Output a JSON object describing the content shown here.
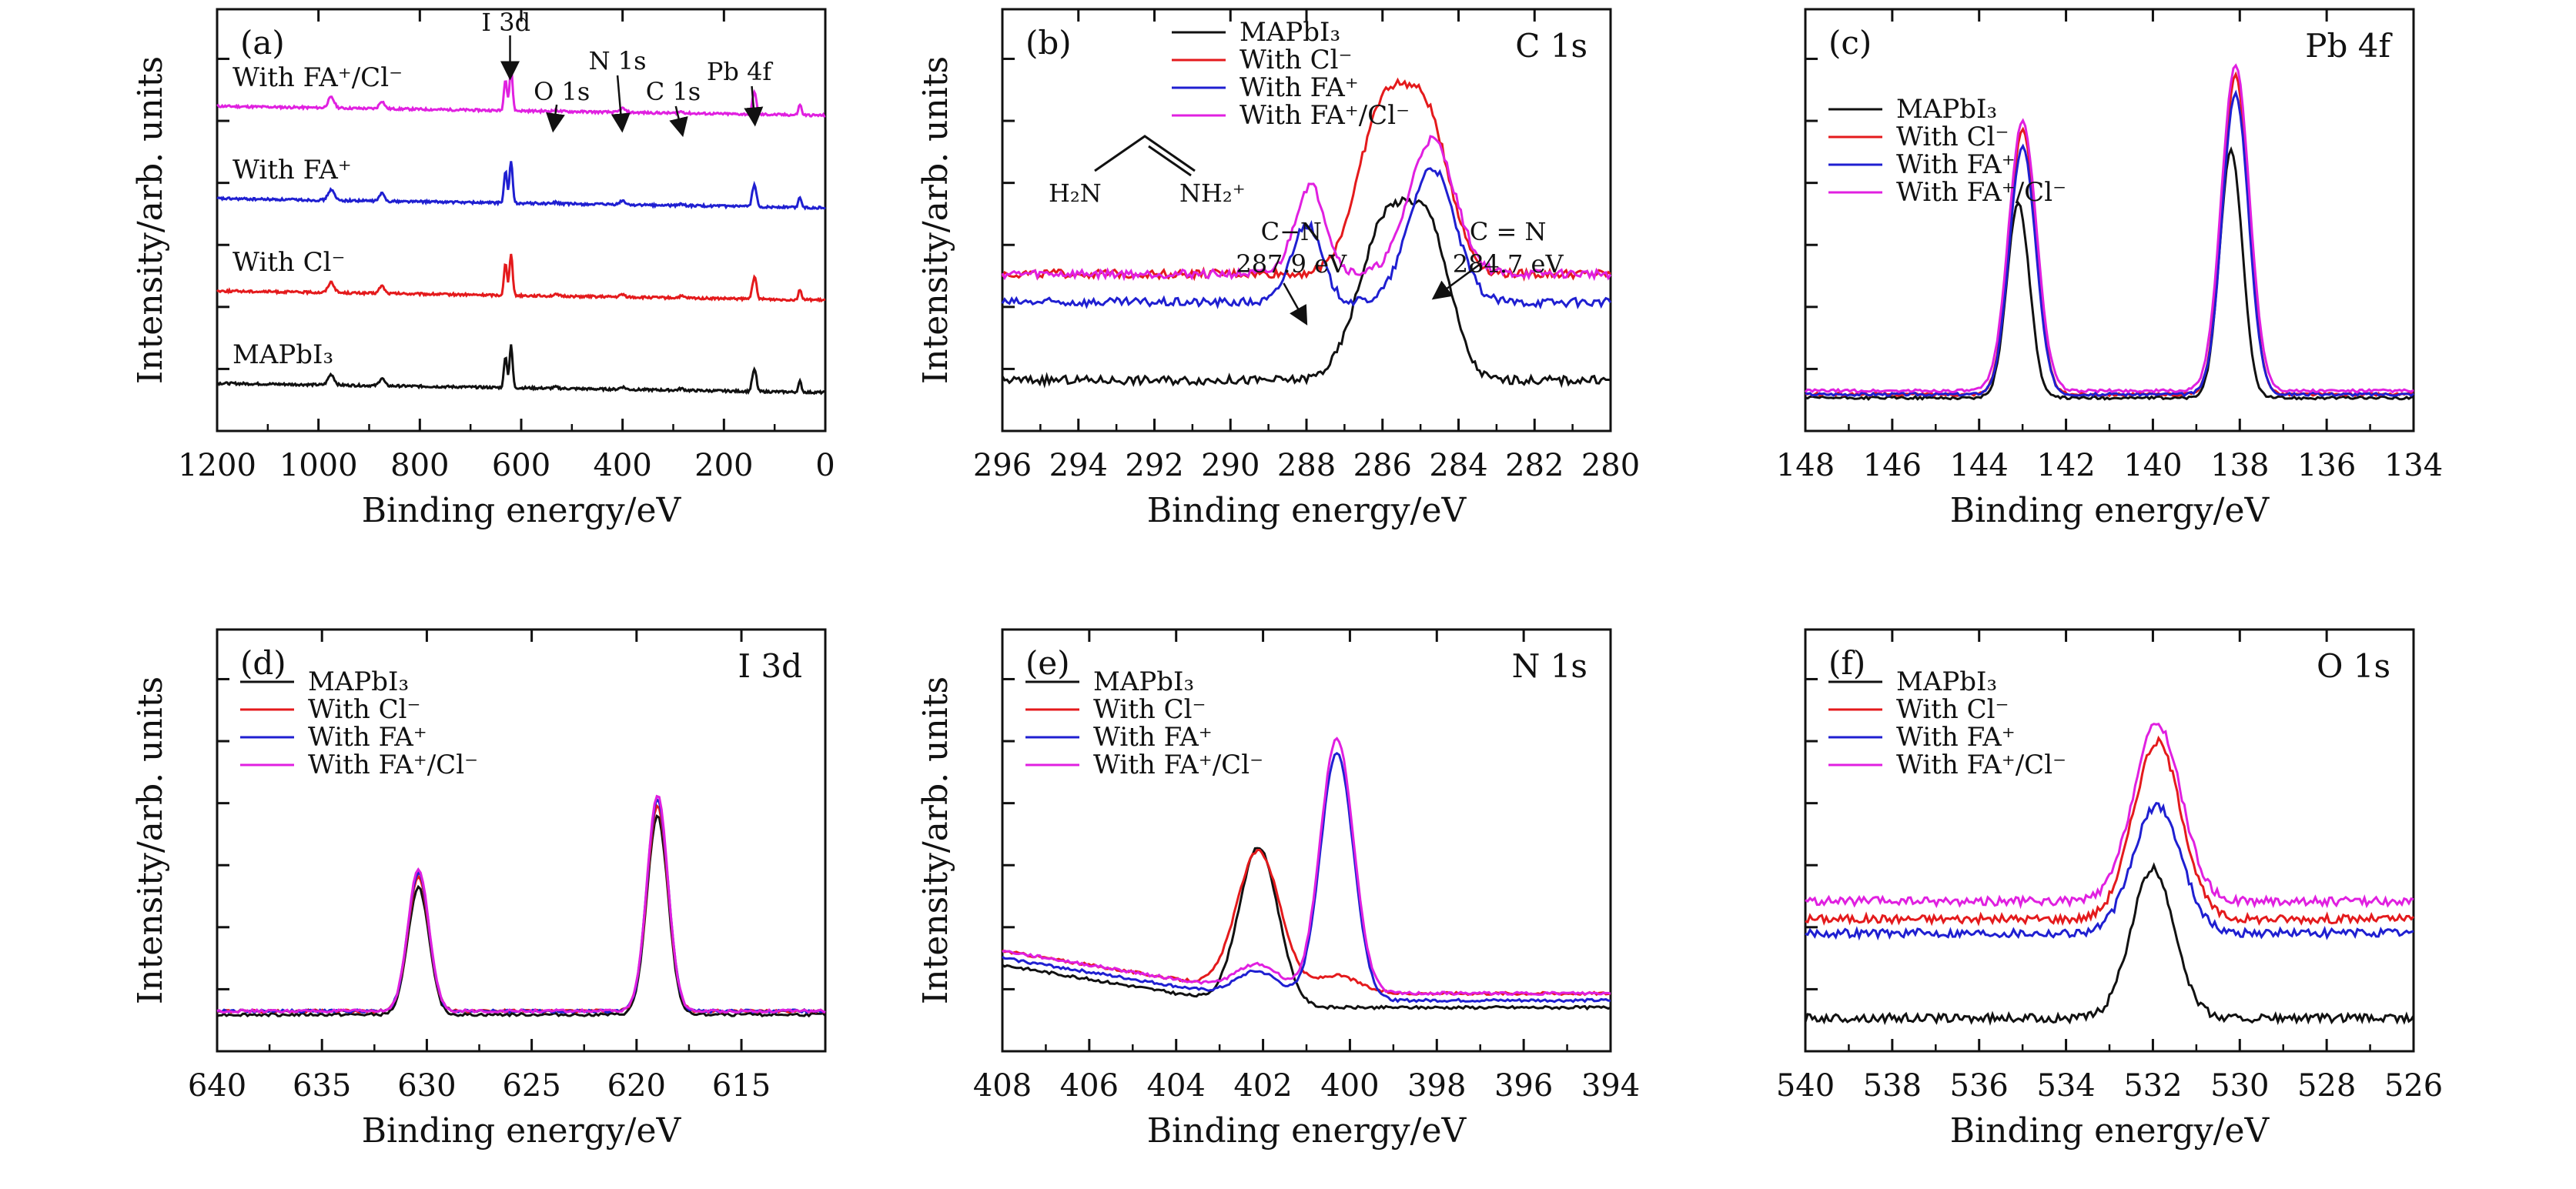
{
  "colors": {
    "black": "#111111",
    "red": "#e41a1c",
    "blue": "#1f1fd1",
    "magenta": "#e020e0"
  },
  "chart_data": [
    {
      "panel": "(a)",
      "type": "line",
      "xlabel": "Binding energy/eV",
      "ylabel": "Intensity/arb. units",
      "xlim": [
        1200,
        0
      ],
      "x_ticks": [
        "1200",
        "1000",
        "800",
        "600",
        "400",
        "200",
        "0"
      ],
      "curve_labels": [
        "With FA⁺/Cl⁻",
        "With FA⁺",
        "With Cl⁻",
        "MAPbI₃"
      ],
      "peak_labels": [
        "I 3d",
        "O 1s",
        "N 1s",
        "C 1s",
        "Pb 4f"
      ],
      "series": [
        {
          "color": "#e020e0",
          "offset": 3
        },
        {
          "color": "#1f1fd1",
          "offset": 2
        },
        {
          "color": "#e41a1c",
          "offset": 1
        },
        {
          "color": "#111111",
          "offset": 0
        }
      ]
    },
    {
      "panel": "(b)",
      "title": "C 1s",
      "type": "line",
      "xlabel": "Binding energy/eV",
      "ylabel": "Intensity/arb. units",
      "xlim": [
        296,
        280
      ],
      "x_ticks": [
        "296",
        "294",
        "292",
        "290",
        "288",
        "286",
        "284",
        "282",
        "280"
      ],
      "legend": [
        "MAPbI₃",
        "With Cl⁻",
        "With FA⁺",
        "With FA⁺/Cl⁻"
      ],
      "annotations": {
        "structure_left": "H₂N",
        "structure_right": "NH₂⁺",
        "cn_label": "C−N",
        "cn_value": "287.9 eV",
        "c2n_label": "C = N",
        "c2n_value": "284.7 eV"
      },
      "series": [
        {
          "name": "MAPbI₃",
          "baseline": 0.1,
          "peaks": [
            [
              285.9,
              0.45,
              0.7
            ],
            [
              284.7,
              0.35,
              0.55
            ]
          ]
        },
        {
          "name": "With Cl⁻",
          "baseline": 0.4,
          "peaks": [
            [
              286.0,
              0.45,
              0.65
            ],
            [
              284.8,
              0.4,
              0.6
            ]
          ]
        },
        {
          "name": "With FA⁺",
          "baseline": 0.32,
          "peaks": [
            [
              288.0,
              0.22,
              0.4
            ],
            [
              284.7,
              0.38,
              0.6
            ]
          ]
        },
        {
          "name": "With FA⁺/Cl⁻",
          "baseline": 0.4,
          "peaks": [
            [
              287.9,
              0.25,
              0.4
            ],
            [
              284.7,
              0.38,
              0.6
            ]
          ]
        }
      ]
    },
    {
      "panel": "(c)",
      "title": "Pb 4f",
      "type": "line",
      "xlabel": "Binding energy/eV",
      "ylabel": "",
      "xlim": [
        148,
        134
      ],
      "x_ticks": [
        "148",
        "146",
        "144",
        "142",
        "140",
        "138",
        "136",
        "134"
      ],
      "legend": [
        "MAPbI₃",
        "With Cl⁻",
        "With FA⁺",
        "With FA⁺/Cl⁻"
      ],
      "series": [
        {
          "name": "MAPbI₃",
          "baseline": 0.05,
          "peaks": [
            [
              143.1,
              0.55,
              0.26
            ],
            [
              138.2,
              0.7,
              0.26
            ]
          ]
        },
        {
          "name": "With Cl⁻",
          "baseline": 0.06,
          "peaks": [
            [
              143.0,
              0.75,
              0.3
            ],
            [
              138.1,
              0.9,
              0.3
            ]
          ]
        },
        {
          "name": "With FA⁺",
          "baseline": 0.06,
          "peaks": [
            [
              143.0,
              0.7,
              0.3
            ],
            [
              138.1,
              0.85,
              0.3
            ]
          ]
        },
        {
          "name": "With FA⁺/Cl⁻",
          "baseline": 0.07,
          "peaks": [
            [
              143.0,
              0.76,
              0.32
            ],
            [
              138.1,
              0.92,
              0.32
            ]
          ]
        }
      ]
    },
    {
      "panel": "(d)",
      "title": "I 3d",
      "type": "line",
      "xlabel": "Binding energy/eV",
      "ylabel": "Intensity/arb. units",
      "xlim": [
        640,
        611
      ],
      "x_ticks": [
        "640",
        "635",
        "630",
        "625",
        "620",
        "615"
      ],
      "legend": [
        "MAPbI₃",
        "With Cl⁻",
        "With FA⁺",
        "With FA⁺/Cl⁻"
      ],
      "series": [
        {
          "name": "MAPbI₃",
          "baseline": 0.06,
          "peaks": [
            [
              630.4,
              0.36,
              0.5
            ],
            [
              619.0,
              0.56,
              0.5
            ]
          ]
        },
        {
          "name": "With Cl⁻",
          "baseline": 0.07,
          "peaks": [
            [
              630.4,
              0.38,
              0.5
            ],
            [
              619.0,
              0.58,
              0.5
            ]
          ]
        },
        {
          "name": "With FA⁺",
          "baseline": 0.07,
          "peaks": [
            [
              630.4,
              0.39,
              0.5
            ],
            [
              619.0,
              0.6,
              0.5
            ]
          ]
        },
        {
          "name": "With FA⁺/Cl⁻",
          "baseline": 0.07,
          "peaks": [
            [
              630.4,
              0.4,
              0.5
            ],
            [
              619.0,
              0.61,
              0.5
            ]
          ]
        }
      ]
    },
    {
      "panel": "(e)",
      "title": "N 1s",
      "type": "line",
      "xlabel": "Binding energy/eV",
      "ylabel": "Intensity/arb. units",
      "xlim": [
        408,
        394
      ],
      "x_ticks": [
        "408",
        "406",
        "404",
        "402",
        "400",
        "398",
        "396",
        "394"
      ],
      "legend": [
        "MAPbI₃",
        "With Cl⁻",
        "With FA⁺",
        "With FA⁺/Cl⁻"
      ],
      "series": [
        {
          "name": "MAPbI₃",
          "baseline": 0.08,
          "peaks": [
            [
              402.1,
              0.45,
              0.45
            ]
          ]
        },
        {
          "name": "With Cl⁻",
          "baseline": 0.12,
          "peaks": [
            [
              402.1,
              0.4,
              0.5
            ],
            [
              400.3,
              0.05,
              0.5
            ]
          ]
        },
        {
          "name": "With FA⁺",
          "baseline": 0.1,
          "peaks": [
            [
              402.1,
              0.08,
              0.5
            ],
            [
              400.3,
              0.7,
              0.38
            ]
          ]
        },
        {
          "name": "With FA⁺/Cl⁻",
          "baseline": 0.12,
          "peaks": [
            [
              402.1,
              0.08,
              0.5
            ],
            [
              400.3,
              0.72,
              0.38
            ]
          ]
        }
      ]
    },
    {
      "panel": "(f)",
      "title": "O 1s",
      "type": "line",
      "xlabel": "Binding energy/eV",
      "ylabel": "",
      "xlim": [
        540,
        526
      ],
      "x_ticks": [
        "540",
        "538",
        "536",
        "534",
        "532",
        "530",
        "528",
        "526"
      ],
      "legend": [
        "MAPbI₃",
        "With Cl⁻",
        "With FA⁺",
        "With FA⁺/Cl⁻"
      ],
      "series": [
        {
          "name": "MAPbI₃",
          "baseline": 0.05,
          "peaks": [
            [
              532.0,
              0.42,
              0.5
            ]
          ]
        },
        {
          "name": "With Cl⁻",
          "baseline": 0.33,
          "peaks": [
            [
              531.9,
              0.5,
              0.55
            ]
          ]
        },
        {
          "name": "With FA⁺",
          "baseline": 0.29,
          "peaks": [
            [
              531.9,
              0.36,
              0.55
            ]
          ]
        },
        {
          "name": "With FA⁺/Cl⁻",
          "baseline": 0.38,
          "peaks": [
            [
              531.9,
              0.5,
              0.55
            ]
          ]
        }
      ]
    }
  ]
}
